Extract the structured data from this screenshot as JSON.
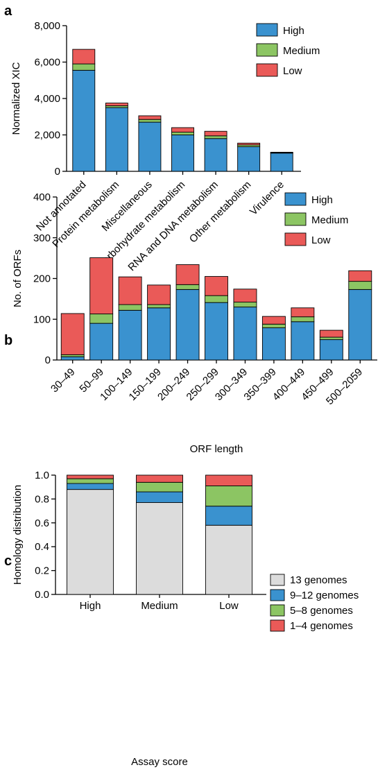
{
  "colors": {
    "high": "#3a92cf",
    "medium": "#8cc563",
    "low": "#ea5a58",
    "g13": "#dcdcdc",
    "g9_12": "#3a92cf",
    "g5_8": "#8cc563",
    "g1_4": "#ea5a58"
  },
  "chart_data": [
    {
      "panel": "a",
      "type": "bar",
      "stacked": true,
      "categories": [
        "Not annotated",
        "Protein metabolism",
        "Miscellaneous",
        "Carbohydrate metabolism",
        "RNA and DNA metabolism",
        "Other metabolism",
        "Virulence"
      ],
      "series": [
        {
          "name": "High",
          "values": [
            5550,
            3500,
            2700,
            2000,
            1800,
            1350,
            1000
          ]
        },
        {
          "name": "Medium",
          "values": [
            350,
            100,
            150,
            150,
            150,
            100,
            20
          ]
        },
        {
          "name": "Low",
          "values": [
            800,
            150,
            200,
            250,
            250,
            100,
            30
          ]
        }
      ],
      "title": "",
      "xlabel": "",
      "ylabel": "Normalized XIC",
      "ylim": [
        0,
        8000
      ],
      "yticks": [
        "0",
        "2,000",
        "4,000",
        "6,000",
        "8,000"
      ],
      "legend_position": "top-right",
      "grid": false
    },
    {
      "panel": "b",
      "type": "bar",
      "stacked": true,
      "categories": [
        "30–49",
        "50–99",
        "100–149",
        "150–199",
        "200–249",
        "250–299",
        "300–349",
        "350–399",
        "400–449",
        "450–499",
        "500–2059"
      ],
      "series": [
        {
          "name": "High",
          "values": [
            8,
            90,
            122,
            128,
            173,
            141,
            130,
            79,
            94,
            50,
            173
          ]
        },
        {
          "name": "Medium",
          "values": [
            5,
            23,
            14,
            8,
            12,
            17,
            12,
            9,
            12,
            6,
            20
          ]
        },
        {
          "name": "Low",
          "values": [
            101,
            138,
            68,
            48,
            49,
            47,
            32,
            19,
            22,
            17,
            26
          ]
        }
      ],
      "title": "",
      "xlabel": "ORF length",
      "ylabel": "No. of ORFs",
      "ylim": [
        0,
        400
      ],
      "yticks": [
        "0",
        "100",
        "200",
        "300",
        "400"
      ],
      "legend_position": "top-right",
      "grid": false
    },
    {
      "panel": "c",
      "type": "bar",
      "stacked": true,
      "categories": [
        "High",
        "Medium",
        "Low"
      ],
      "series": [
        {
          "name": "13 genomes",
          "values": [
            0.88,
            0.77,
            0.58
          ]
        },
        {
          "name": "9–12 genomes",
          "values": [
            0.05,
            0.09,
            0.16
          ]
        },
        {
          "name": "5–8 genomes",
          "values": [
            0.04,
            0.08,
            0.17
          ]
        },
        {
          "name": "1–4 genomes",
          "values": [
            0.03,
            0.06,
            0.09
          ]
        }
      ],
      "title": "",
      "xlabel": "Assay score",
      "ylabel": "Homology distribution",
      "ylim": [
        0,
        1
      ],
      "yticks": [
        "0.0",
        "0.2",
        "0.4",
        "0.6",
        "0.8",
        "1.0"
      ],
      "legend_position": "right",
      "grid": false
    }
  ]
}
